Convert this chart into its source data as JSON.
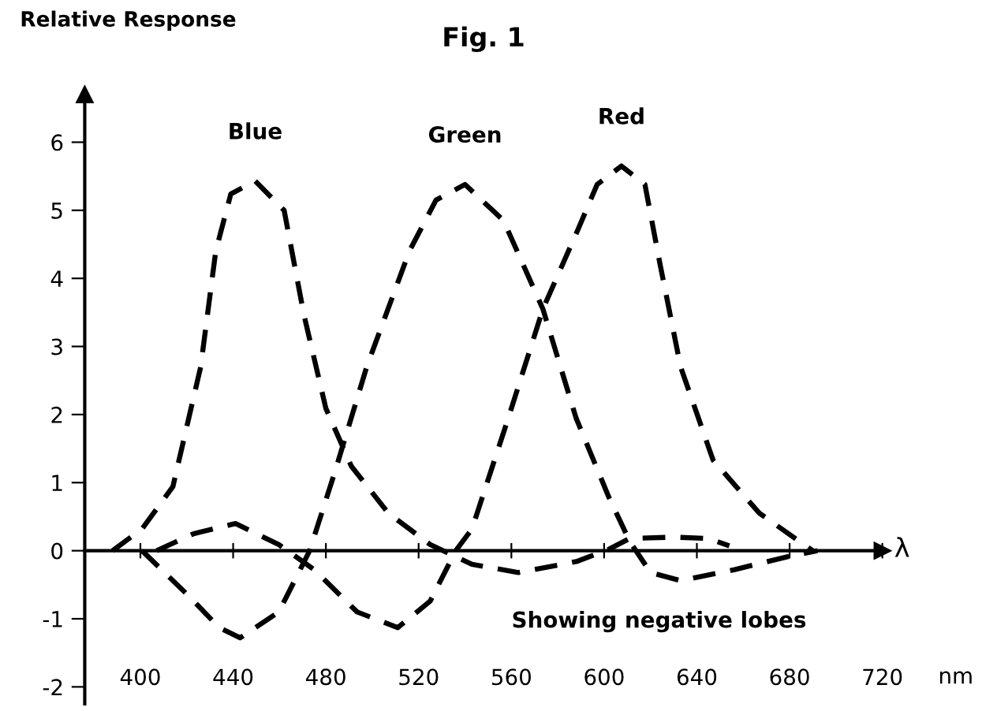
{
  "chart_data": {
    "type": "line",
    "title": "Fig. 1",
    "ylabel": "Relative Response",
    "xlabel": "λ",
    "annotations": [
      "nm",
      "Showing negative lobes"
    ],
    "xlim": [
      376,
      720
    ],
    "ylim": [
      -2.25,
      6.7
    ],
    "xticks": [
      400,
      440,
      480,
      520,
      560,
      600,
      640,
      680,
      720
    ],
    "yticks": [
      -2,
      -1,
      0,
      1,
      2,
      3,
      4,
      5,
      6
    ],
    "marker": "none",
    "line_style": "dashed",
    "series": [
      {
        "name": "Blue",
        "color": "#000000",
        "x": [
          388,
          400.7,
          414,
          426,
          432.5,
          439,
          449.5,
          462,
          470.5,
          480,
          491,
          507,
          525,
          543,
          563,
          588,
          602,
          611,
          630,
          645,
          654
        ],
        "values": [
          0,
          0.32,
          0.94,
          2.7,
          4.4,
          5.24,
          5.43,
          5.0,
          3.47,
          2.09,
          1.24,
          0.55,
          0.09,
          -0.2,
          -0.32,
          -0.16,
          0.02,
          0.18,
          0.2,
          0.18,
          0.07
        ]
      },
      {
        "name": "Green",
        "color": "#000000",
        "x": [
          400.7,
          421,
          434,
          443,
          459.7,
          473,
          484,
          497.6,
          516,
          527.5,
          540,
          556.6,
          573.6,
          588,
          602,
          611,
          620,
          633,
          656,
          679,
          692
        ],
        "values": [
          0,
          -0.67,
          -1.13,
          -1.28,
          -0.9,
          0,
          1.17,
          2.7,
          4.4,
          5.15,
          5.38,
          4.85,
          3.55,
          1.94,
          0.79,
          0.14,
          -0.32,
          -0.44,
          -0.28,
          -0.09,
          0
        ]
      },
      {
        "name": "Red",
        "color": "#000000",
        "x": [
          407,
          423,
          441,
          459.7,
          475,
          493.5,
          511,
          525,
          536,
          543,
          558.6,
          573.6,
          588.5,
          597,
          607.5,
          617.6,
          624,
          633,
          647,
          667,
          690
        ],
        "values": [
          0,
          0.25,
          0.4,
          0.09,
          -0.28,
          -0.9,
          -1.13,
          -0.74,
          0,
          0.32,
          1.94,
          3.55,
          4.7,
          5.38,
          5.65,
          5.38,
          4.23,
          2.7,
          1.33,
          0.55,
          0
        ]
      }
    ]
  }
}
